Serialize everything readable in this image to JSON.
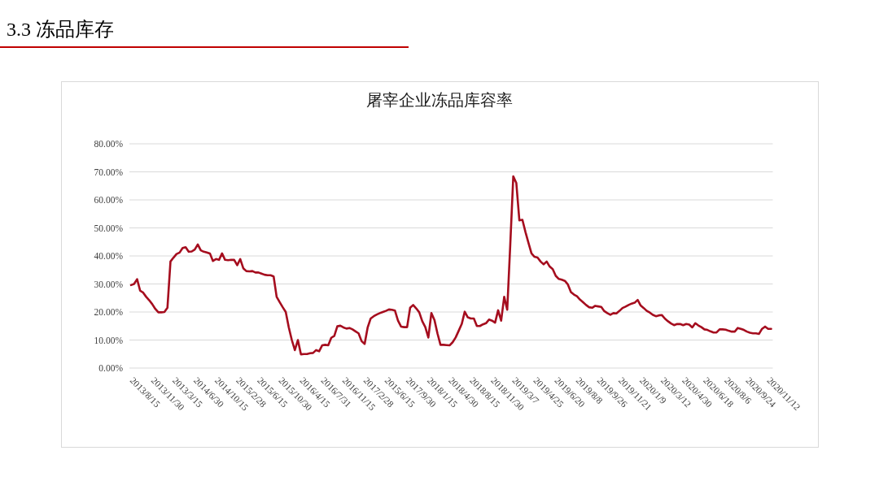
{
  "chart_data": {
    "type": "line",
    "title": "3.3 冻品库存",
    "subtitle": "屠宰企业冻品库容率",
    "categories": [
      "2013/8/15",
      null,
      null,
      null,
      null,
      null,
      null,
      "2013/11/30",
      null,
      null,
      null,
      null,
      null,
      null,
      "2013/3/15",
      null,
      null,
      null,
      null,
      null,
      null,
      "2014/6/30",
      null,
      null,
      null,
      null,
      null,
      null,
      "2014/10/15",
      null,
      null,
      null,
      null,
      null,
      null,
      "2015/2/28",
      null,
      null,
      null,
      null,
      null,
      null,
      "2015/6/15",
      null,
      null,
      null,
      null,
      null,
      null,
      "2015/10/30",
      null,
      null,
      null,
      null,
      null,
      null,
      "2016/4/15",
      null,
      null,
      null,
      null,
      null,
      null,
      "2016/7/31",
      null,
      null,
      null,
      null,
      null,
      null,
      "2016/11/15",
      null,
      null,
      null,
      null,
      null,
      null,
      "2017/2/28",
      null,
      null,
      null,
      null,
      null,
      null,
      "2015/6/15",
      null,
      null,
      null,
      null,
      null,
      null,
      "2017/9/30",
      null,
      null,
      null,
      null,
      null,
      null,
      "2018/1/15",
      null,
      null,
      null,
      null,
      null,
      null,
      "2018/4/30",
      null,
      null,
      null,
      null,
      null,
      null,
      "2018/8/15",
      null,
      null,
      null,
      null,
      null,
      null,
      "2018/11/30",
      null,
      null,
      null,
      null,
      null,
      null,
      "2019/3/7",
      null,
      null,
      null,
      null,
      null,
      null,
      "2019/4/25",
      null,
      null,
      null,
      null,
      null,
      null,
      "2019/6/20",
      null,
      null,
      null,
      null,
      null,
      null,
      "2019/8/8",
      null,
      null,
      null,
      null,
      null,
      null,
      "2019/9/26",
      null,
      null,
      null,
      null,
      null,
      null,
      "2019/11/21",
      null,
      null,
      null,
      null,
      null,
      null,
      "2020/1/9",
      null,
      null,
      null,
      null,
      null,
      null,
      "2020/3/12",
      null,
      null,
      null,
      null,
      null,
      null,
      "2020/4/30",
      null,
      null,
      null,
      null,
      null,
      null,
      "2020/6/18",
      null,
      null,
      null,
      null,
      null,
      null,
      "2020/8/6",
      null,
      null,
      null,
      null,
      null,
      null,
      "2020/9/24",
      null,
      null,
      null,
      null,
      null,
      null,
      "2020/11/12",
      null
    ],
    "series": [
      {
        "color": "#a50d1e",
        "values": [
          29.6,
          30.0,
          31.7,
          27.6,
          26.9,
          25.4,
          24.2,
          22.8,
          21.1,
          19.9,
          19.9,
          20.0,
          21.5,
          38.0,
          39.4,
          40.7,
          41.2,
          42.8,
          43.1,
          41.5,
          41.6,
          42.3,
          44.1,
          42.0,
          41.5,
          41.2,
          40.9,
          38.2,
          38.9,
          38.6,
          40.9,
          38.6,
          38.5,
          38.6,
          38.6,
          36.7,
          38.9,
          35.6,
          34.6,
          34.5,
          34.6,
          34.1,
          34.1,
          33.7,
          33.3,
          33.1,
          33.1,
          32.7,
          25.4,
          23.5,
          21.7,
          20.0,
          14.5,
          10.0,
          6.4,
          10.0,
          4.9,
          5.0,
          5.0,
          5.3,
          5.4,
          6.4,
          6.0,
          8.1,
          8.3,
          8.1,
          10.8,
          11.5,
          14.9,
          15.1,
          14.5,
          14.1,
          14.3,
          13.8,
          13.1,
          12.4,
          9.6,
          8.6,
          14.5,
          17.7,
          18.5,
          19.1,
          19.6,
          20.0,
          20.4,
          20.9,
          20.8,
          20.5,
          16.9,
          14.8,
          14.6,
          14.6,
          21.5,
          22.5,
          21.3,
          19.9,
          16.7,
          14.6,
          10.9,
          19.6,
          17.2,
          12.4,
          8.3,
          8.3,
          8.2,
          8.1,
          9.2,
          10.9,
          13.3,
          15.7,
          20.1,
          18.1,
          17.7,
          17.7,
          15.0,
          15.0,
          15.6,
          16.0,
          17.3,
          16.9,
          16.2,
          20.6,
          16.9,
          25.4,
          20.8,
          44.0,
          68.4,
          66.0,
          52.7,
          52.9,
          48.6,
          44.7,
          40.9,
          39.7,
          39.4,
          38.0,
          37.0,
          38.0,
          36.2,
          35.3,
          32.9,
          31.8,
          31.5,
          31.1,
          29.8,
          27.1,
          26.2,
          25.6,
          24.4,
          23.5,
          22.5,
          21.7,
          21.5,
          22.2,
          22.0,
          21.8,
          20.3,
          19.6,
          19.0,
          19.6,
          19.5,
          20.4,
          21.4,
          21.9,
          22.5,
          23.0,
          23.3,
          24.3,
          22.3,
          21.4,
          20.4,
          19.8,
          19.0,
          18.5,
          18.8,
          18.9,
          17.6,
          16.7,
          15.9,
          15.3,
          15.7,
          15.7,
          15.3,
          15.7,
          15.5,
          14.5,
          16.0,
          15.2,
          14.6,
          13.8,
          13.6,
          13.1,
          12.7,
          12.7,
          13.8,
          13.8,
          13.7,
          13.3,
          13.0,
          13.0,
          14.3,
          14.0,
          13.6,
          13.0,
          12.6,
          12.4,
          12.4,
          12.2,
          14.0,
          14.8,
          14.0,
          14.0
        ]
      }
    ],
    "ylim": [
      0,
      80
    ],
    "yticks": [
      {
        "value": 0,
        "label": "0.00%"
      },
      {
        "value": 10,
        "label": "10.00%"
      },
      {
        "value": 20,
        "label": "20.00%"
      },
      {
        "value": 30,
        "label": "30.00%"
      },
      {
        "value": 40,
        "label": "40.00%"
      },
      {
        "value": 50,
        "label": "50.00%"
      },
      {
        "value": 60,
        "label": "60.00%"
      },
      {
        "value": 70,
        "label": "70.00%"
      },
      {
        "value": 80,
        "label": "80.00%"
      }
    ],
    "grid": "y",
    "line_style": "solid"
  }
}
